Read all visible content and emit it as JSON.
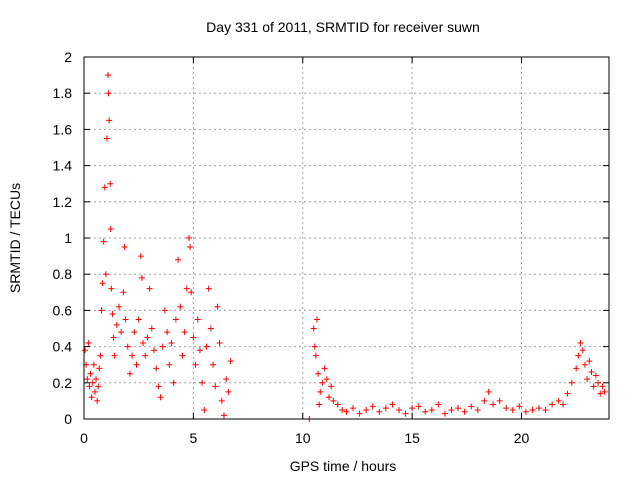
{
  "chart_data": {
    "type": "scatter",
    "title": "Day 331 of 2011, SRMTID for receiver suwn",
    "xlabel": "GPS time / hours",
    "ylabel": "SRMTID / TECUs",
    "xlim": [
      0,
      24
    ],
    "ylim": [
      0,
      2
    ],
    "xticks": [
      0,
      5,
      10,
      15,
      20
    ],
    "xtick_labels": [
      "0",
      "5",
      "10",
      "15",
      "20"
    ],
    "yticks": [
      0,
      0.2,
      0.4,
      0.6,
      0.8,
      1,
      1.2,
      1.4,
      1.6,
      1.8,
      2
    ],
    "ytick_labels": [
      "0",
      "0.2",
      "0.4",
      "0.6",
      "0.8",
      "1",
      "1.2",
      "1.4",
      "1.6",
      "1.8",
      "2"
    ],
    "grid": true,
    "marker": "+",
    "color": "#ff0000",
    "series": [
      {
        "name": "SRMTID",
        "points": [
          [
            0.05,
            0.38
          ],
          [
            0.1,
            0.3
          ],
          [
            0.15,
            0.22
          ],
          [
            0.2,
            0.42
          ],
          [
            0.25,
            0.18
          ],
          [
            0.3,
            0.25
          ],
          [
            0.35,
            0.12
          ],
          [
            0.4,
            0.2
          ],
          [
            0.45,
            0.3
          ],
          [
            0.5,
            0.15
          ],
          [
            0.55,
            0.22
          ],
          [
            0.6,
            0.1
          ],
          [
            0.65,
            0.18
          ],
          [
            0.7,
            0.28
          ],
          [
            0.75,
            0.35
          ],
          [
            0.8,
            0.6
          ],
          [
            0.85,
            0.75
          ],
          [
            0.9,
            0.98
          ],
          [
            0.95,
            1.28
          ],
          [
            1.0,
            0.8
          ],
          [
            1.05,
            1.55
          ],
          [
            1.1,
            1.9
          ],
          [
            1.12,
            1.8
          ],
          [
            1.15,
            1.65
          ],
          [
            1.2,
            1.3
          ],
          [
            1.22,
            1.05
          ],
          [
            1.25,
            0.72
          ],
          [
            1.3,
            0.58
          ],
          [
            1.35,
            0.45
          ],
          [
            1.4,
            0.35
          ],
          [
            1.5,
            0.52
          ],
          [
            1.6,
            0.62
          ],
          [
            1.7,
            0.48
          ],
          [
            1.8,
            0.7
          ],
          [
            1.85,
            0.95
          ],
          [
            1.9,
            0.55
          ],
          [
            2.0,
            0.4
          ],
          [
            2.1,
            0.25
          ],
          [
            2.2,
            0.35
          ],
          [
            2.3,
            0.48
          ],
          [
            2.4,
            0.3
          ],
          [
            2.5,
            0.55
          ],
          [
            2.6,
            0.9
          ],
          [
            2.65,
            0.78
          ],
          [
            2.7,
            0.42
          ],
          [
            2.8,
            0.35
          ],
          [
            2.9,
            0.45
          ],
          [
            3.0,
            0.72
          ],
          [
            3.1,
            0.5
          ],
          [
            3.2,
            0.38
          ],
          [
            3.3,
            0.28
          ],
          [
            3.4,
            0.18
          ],
          [
            3.5,
            0.12
          ],
          [
            3.6,
            0.4
          ],
          [
            3.7,
            0.6
          ],
          [
            3.8,
            0.48
          ],
          [
            3.9,
            0.3
          ],
          [
            4.0,
            0.42
          ],
          [
            4.1,
            0.2
          ],
          [
            4.2,
            0.55
          ],
          [
            4.3,
            0.88
          ],
          [
            4.4,
            0.62
          ],
          [
            4.5,
            0.35
          ],
          [
            4.6,
            0.48
          ],
          [
            4.7,
            0.72
          ],
          [
            4.8,
            1.0
          ],
          [
            4.85,
            0.95
          ],
          [
            4.9,
            0.7
          ],
          [
            5.0,
            0.45
          ],
          [
            5.1,
            0.3
          ],
          [
            5.2,
            0.55
          ],
          [
            5.3,
            0.38
          ],
          [
            5.4,
            0.2
          ],
          [
            5.5,
            0.05
          ],
          [
            5.6,
            0.4
          ],
          [
            5.7,
            0.72
          ],
          [
            5.8,
            0.5
          ],
          [
            5.9,
            0.3
          ],
          [
            6.0,
            0.18
          ],
          [
            6.1,
            0.62
          ],
          [
            6.2,
            0.42
          ],
          [
            6.3,
            0.1
          ],
          [
            6.4,
            0.02
          ],
          [
            6.5,
            0.22
          ],
          [
            6.6,
            0.15
          ],
          [
            6.7,
            0.32
          ],
          [
            10.3,
            0.0
          ],
          [
            10.5,
            0.5
          ],
          [
            10.55,
            0.4
          ],
          [
            10.6,
            0.35
          ],
          [
            10.65,
            0.55
          ],
          [
            10.7,
            0.25
          ],
          [
            10.75,
            0.08
          ],
          [
            10.8,
            0.15
          ],
          [
            10.9,
            0.2
          ],
          [
            11.0,
            0.28
          ],
          [
            11.1,
            0.22
          ],
          [
            11.2,
            0.12
          ],
          [
            11.3,
            0.18
          ],
          [
            11.4,
            0.1
          ],
          [
            11.6,
            0.08
          ],
          [
            11.8,
            0.05
          ],
          [
            12.0,
            0.04
          ],
          [
            12.3,
            0.06
          ],
          [
            12.6,
            0.03
          ],
          [
            12.9,
            0.05
          ],
          [
            13.2,
            0.07
          ],
          [
            13.5,
            0.04
          ],
          [
            13.8,
            0.06
          ],
          [
            14.1,
            0.08
          ],
          [
            14.4,
            0.05
          ],
          [
            14.7,
            0.03
          ],
          [
            15.0,
            0.06
          ],
          [
            15.3,
            0.07
          ],
          [
            15.6,
            0.04
          ],
          [
            15.9,
            0.05
          ],
          [
            16.2,
            0.08
          ],
          [
            16.5,
            0.03
          ],
          [
            16.8,
            0.05
          ],
          [
            17.1,
            0.06
          ],
          [
            17.4,
            0.04
          ],
          [
            17.7,
            0.07
          ],
          [
            18.0,
            0.05
          ],
          [
            18.3,
            0.1
          ],
          [
            18.5,
            0.15
          ],
          [
            18.7,
            0.08
          ],
          [
            19.0,
            0.1
          ],
          [
            19.3,
            0.06
          ],
          [
            19.6,
            0.05
          ],
          [
            19.9,
            0.07
          ],
          [
            20.2,
            0.04
          ],
          [
            20.5,
            0.05
          ],
          [
            20.8,
            0.06
          ],
          [
            21.1,
            0.05
          ],
          [
            21.4,
            0.08
          ],
          [
            21.7,
            0.1
          ],
          [
            21.9,
            0.08
          ],
          [
            22.1,
            0.14
          ],
          [
            22.3,
            0.2
          ],
          [
            22.5,
            0.28
          ],
          [
            22.6,
            0.35
          ],
          [
            22.7,
            0.42
          ],
          [
            22.8,
            0.38
          ],
          [
            22.9,
            0.3
          ],
          [
            23.0,
            0.22
          ],
          [
            23.1,
            0.32
          ],
          [
            23.2,
            0.26
          ],
          [
            23.3,
            0.18
          ],
          [
            23.4,
            0.24
          ],
          [
            23.5,
            0.2
          ],
          [
            23.6,
            0.14
          ],
          [
            23.7,
            0.18
          ],
          [
            23.8,
            0.15
          ]
        ]
      }
    ]
  }
}
